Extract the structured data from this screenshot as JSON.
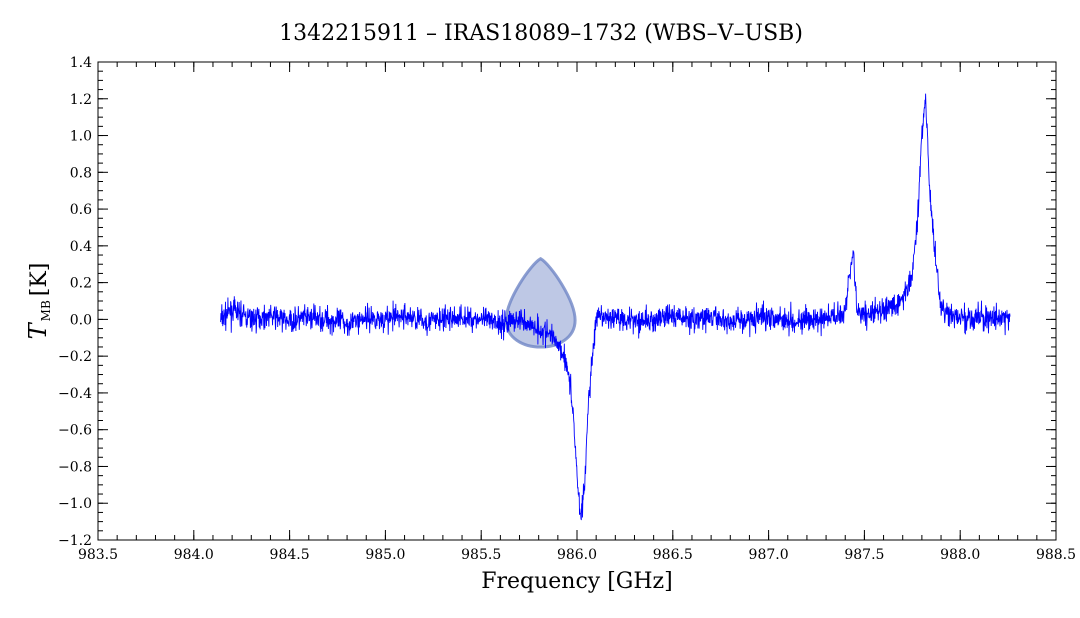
{
  "chart_data": {
    "type": "line",
    "title": "1342215911 – IRAS18089–1732 (WBS–V–USB)",
    "xlabel": "Frequency [GHz]",
    "ylabel": {
      "symbol": "T",
      "subscript": "MB",
      "unit": "[K]"
    },
    "xlim": [
      983.5,
      988.5
    ],
    "ylim": [
      -1.2,
      1.4
    ],
    "xticks": [
      "983.5",
      "984.0",
      "984.5",
      "985.0",
      "985.5",
      "986.0",
      "986.5",
      "987.0",
      "987.5",
      "988.0",
      "988.5"
    ],
    "yticks": [
      "−1.2",
      "−1.0",
      "−0.8",
      "−0.6",
      "−0.4",
      "−0.2",
      "0.0",
      "0.2",
      "0.4",
      "0.6",
      "0.8",
      "1.0",
      "1.2",
      "1.4"
    ],
    "grid": false,
    "series": [
      {
        "color": "#0000ff",
        "x": [
          984.14,
          984.2,
          984.3,
          984.4,
          984.5,
          984.6,
          984.7,
          984.8,
          984.9,
          985.0,
          985.1,
          985.2,
          985.3,
          985.4,
          985.5,
          985.6,
          985.7,
          985.8,
          985.85,
          985.9,
          985.95,
          985.98,
          986.0,
          986.02,
          986.04,
          986.06,
          986.08,
          986.1,
          986.2,
          986.3,
          986.4,
          986.5,
          986.6,
          986.7,
          986.8,
          986.9,
          987.0,
          987.1,
          987.2,
          987.3,
          987.4,
          987.44,
          987.46,
          987.5,
          987.6,
          987.7,
          987.75,
          987.78,
          987.8,
          987.82,
          987.84,
          987.86,
          987.9,
          988.0,
          988.1,
          988.2,
          988.26
        ],
        "y": [
          0.0,
          0.05,
          0.0,
          0.02,
          -0.01,
          0.01,
          0.0,
          -0.02,
          0.01,
          0.0,
          0.02,
          -0.01,
          0.0,
          0.01,
          0.0,
          -0.02,
          0.0,
          -0.05,
          -0.08,
          -0.12,
          -0.25,
          -0.5,
          -0.85,
          -1.08,
          -0.9,
          -0.45,
          -0.2,
          0.0,
          0.01,
          0.0,
          -0.01,
          0.02,
          0.0,
          0.01,
          -0.01,
          0.0,
          0.02,
          0.0,
          -0.01,
          0.0,
          0.05,
          0.4,
          0.05,
          0.02,
          0.05,
          0.1,
          0.25,
          0.6,
          1.0,
          1.22,
          0.7,
          0.45,
          0.05,
          0.0,
          0.01,
          0.0,
          0.0
        ]
      }
    ],
    "annotations": [
      {
        "type": "shaded-drop",
        "x_center": 985.81,
        "y_top": 0.33,
        "y_bottom": -0.21,
        "half_width": 0.18,
        "color": "#6f86c6"
      }
    ]
  }
}
